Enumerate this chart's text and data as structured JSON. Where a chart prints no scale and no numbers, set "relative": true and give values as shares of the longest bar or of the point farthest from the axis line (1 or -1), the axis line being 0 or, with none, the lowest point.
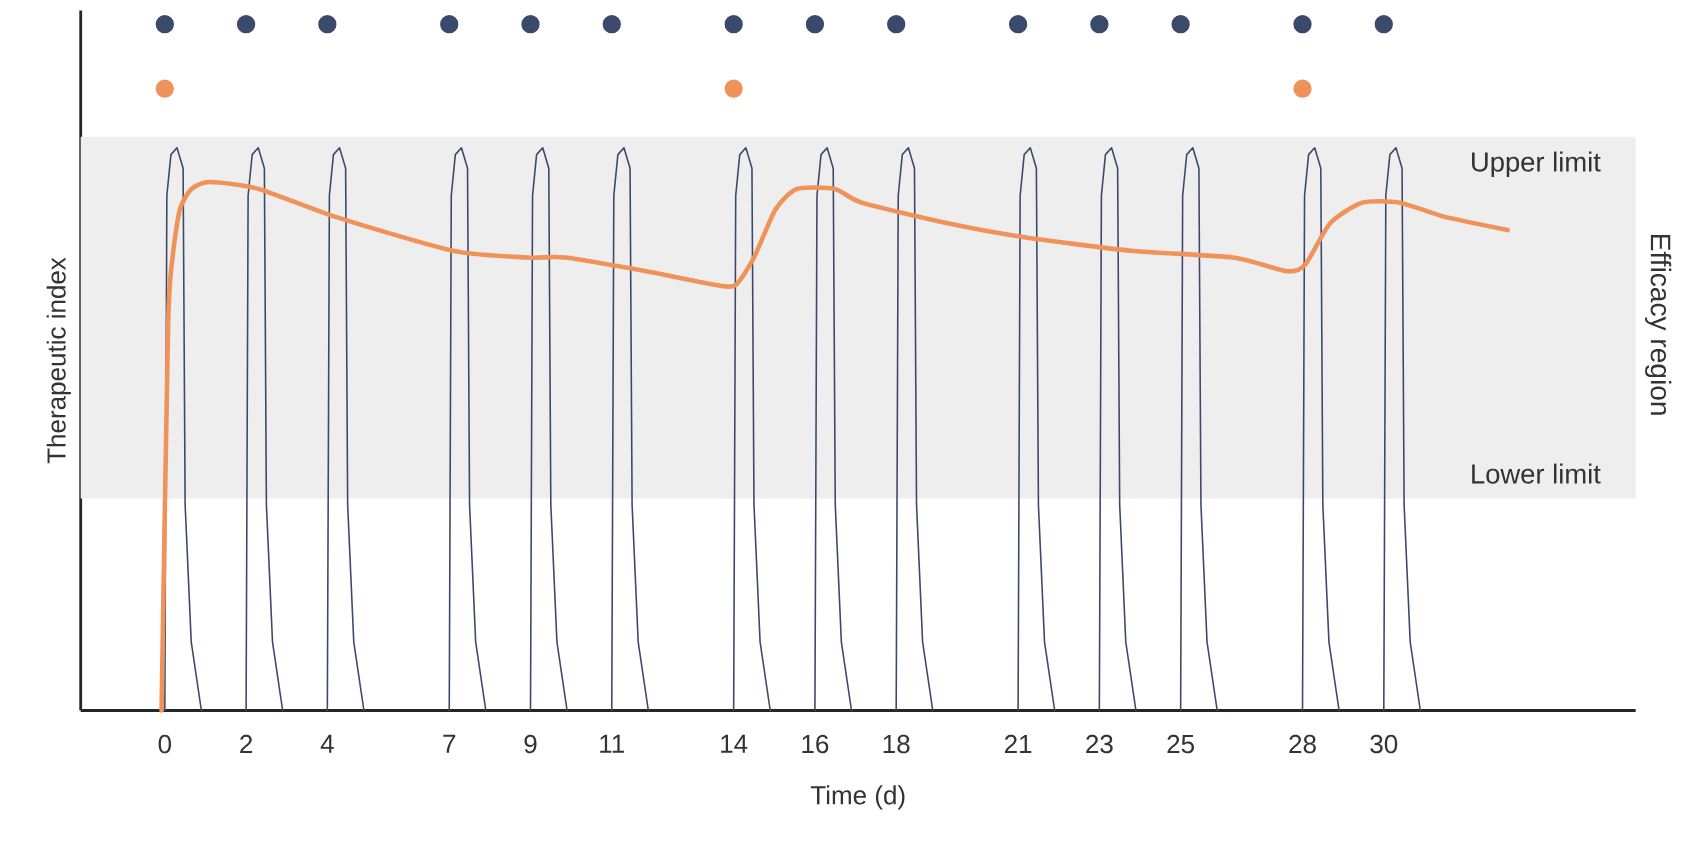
{
  "chart_data": {
    "type": "line",
    "relative": true,
    "xlabel": "Time (d)",
    "ylabel": "Therapeutic index",
    "xlim": [
      -2.07,
      36.2
    ],
    "xticks": [
      0,
      2,
      4,
      7,
      9,
      11,
      14,
      16,
      18,
      21,
      23,
      25,
      28,
      30
    ],
    "bands": [
      {
        "axis": "y",
        "from": 0.309,
        "to": 0.836,
        "label": "Efficacy region",
        "color": "#eeeeee"
      }
    ],
    "annotations": [
      "Upper limit",
      "Lower limit"
    ],
    "series": [
      {
        "color": "#3b4a6b",
        "x": [
          0,
          0.05,
          0.15,
          0.3,
          0.45,
          0.5,
          0.65,
          0.9,
          1,
          2,
          2.05,
          2.15,
          2.3,
          2.45,
          2.5,
          2.65,
          2.9,
          3,
          4,
          4.05,
          4.15,
          4.3,
          4.45,
          4.5,
          4.65,
          4.9,
          5,
          7,
          7.05,
          7.15,
          7.3,
          7.45,
          7.5,
          7.65,
          7.9,
          8,
          9,
          9.05,
          9.15,
          9.3,
          9.45,
          9.5,
          9.65,
          9.9,
          10,
          11,
          11.05,
          11.15,
          11.3,
          11.45,
          11.5,
          11.65,
          11.9,
          12,
          14,
          14.05,
          14.15,
          14.3,
          14.45,
          14.5,
          14.65,
          14.9,
          15,
          16,
          16.05,
          16.15,
          16.3,
          16.45,
          16.5,
          16.65,
          16.9,
          17,
          18,
          18.05,
          18.15,
          18.3,
          18.45,
          18.5,
          18.65,
          18.9,
          19,
          21,
          21.05,
          21.15,
          21.3,
          21.45,
          21.5,
          21.65,
          21.9,
          22,
          23,
          23.05,
          23.15,
          23.3,
          23.45,
          23.5,
          23.65,
          23.9,
          24,
          25,
          25.05,
          25.15,
          25.3,
          25.45,
          25.5,
          25.65,
          25.9,
          26,
          28,
          28.05,
          28.15,
          28.3,
          28.45,
          28.5,
          28.65,
          28.9,
          29,
          30,
          30.05,
          30.15,
          30.3,
          30.45,
          30.5,
          30.65,
          30.9
        ],
        "values": [
          0,
          0.75,
          0.81,
          0.82,
          0.79,
          0.3,
          0.1,
          0,
          null,
          0,
          0.75,
          0.81,
          0.82,
          0.79,
          0.3,
          0.1,
          0,
          null,
          0,
          0.75,
          0.81,
          0.82,
          0.79,
          0.3,
          0.1,
          0,
          null,
          0,
          0.75,
          0.81,
          0.82,
          0.79,
          0.3,
          0.1,
          0,
          null,
          0,
          0.75,
          0.81,
          0.82,
          0.79,
          0.3,
          0.1,
          0,
          null,
          0,
          0.75,
          0.81,
          0.82,
          0.79,
          0.3,
          0.1,
          0,
          null,
          0,
          0.75,
          0.81,
          0.82,
          0.79,
          0.3,
          0.1,
          0,
          null,
          0,
          0.75,
          0.81,
          0.82,
          0.79,
          0.3,
          0.1,
          0,
          null,
          0,
          0.75,
          0.81,
          0.82,
          0.79,
          0.3,
          0.1,
          0,
          null,
          0,
          0.75,
          0.81,
          0.82,
          0.79,
          0.3,
          0.1,
          0,
          null,
          0,
          0.75,
          0.81,
          0.82,
          0.79,
          0.3,
          0.1,
          0,
          null,
          0,
          0.75,
          0.81,
          0.82,
          0.79,
          0.3,
          0.1,
          0,
          null,
          0,
          0.75,
          0.81,
          0.82,
          0.79,
          0.3,
          0.1,
          0,
          null,
          0,
          0.75,
          0.81,
          0.82,
          0.79,
          0.3,
          0.1,
          0
        ]
      },
      {
        "color": "#f0935a",
        "x": [
          -0.08,
          0.08,
          0.19,
          0.37,
          0.66,
          1.11,
          2.31,
          4.16,
          7.08,
          8.93,
          9.86,
          11.85,
          13.57,
          14.05,
          14.5,
          15.03,
          15.56,
          16.49,
          17.15,
          19.27,
          21.12,
          23.77,
          26.29,
          27.62,
          28.07,
          28.68,
          29.47,
          30.4,
          31.46,
          33.05
        ],
        "values": [
          0,
          0.56,
          0.66,
          0.73,
          0.76,
          0.77,
          0.76,
          0.72,
          0.67,
          0.66,
          0.66,
          0.64,
          0.62,
          0.62,
          0.66,
          0.73,
          0.76,
          0.76,
          0.74,
          0.71,
          0.69,
          0.67,
          0.66,
          0.64,
          0.65,
          0.71,
          0.74,
          0.74,
          0.72,
          0.7
        ]
      },
      {
        "type": "scatter",
        "color": "#3b4a6b",
        "x": [
          0,
          2,
          4,
          7,
          9,
          11,
          14,
          16,
          18,
          21,
          23,
          25,
          28,
          30
        ],
        "values": [
          1,
          1,
          1,
          1,
          1,
          1,
          1,
          1,
          1,
          1,
          1,
          1,
          1,
          1
        ]
      },
      {
        "type": "scatter",
        "color": "#f0935a",
        "x": [
          0,
          14,
          28
        ],
        "values": [
          0.906,
          0.906,
          0.906
        ]
      }
    ]
  }
}
